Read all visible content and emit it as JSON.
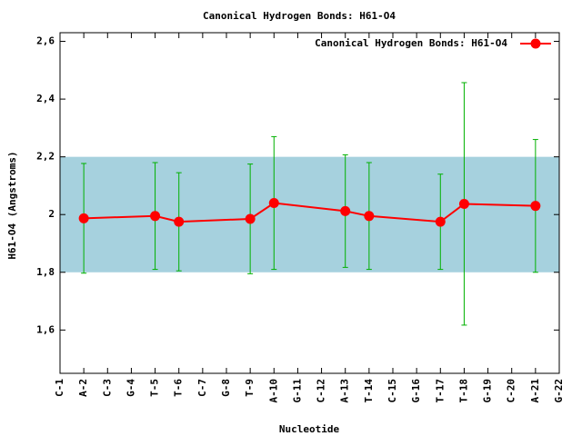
{
  "chart_data": {
    "type": "errorline",
    "title": "Canonical Hydrogen Bonds: H61-O4",
    "xlabel": "Nucleotide",
    "ylabel": "H61-O4 (Angstroms)",
    "categories": [
      "C-1",
      "A-2",
      "C-3",
      "G-4",
      "T-5",
      "T-6",
      "C-7",
      "G-8",
      "T-9",
      "A-10",
      "G-11",
      "C-12",
      "A-13",
      "T-14",
      "C-15",
      "G-16",
      "T-17",
      "T-18",
      "G-19",
      "C-20",
      "A-21",
      "G-22"
    ],
    "ylim": [
      1.45,
      2.63
    ],
    "yticks": [
      {
        "value": 1.6,
        "label": "1,6"
      },
      {
        "value": 1.8,
        "label": "1,8"
      },
      2,
      {
        "value": 2.2,
        "label": "2,2"
      },
      {
        "value": 2.4,
        "label": "2,4"
      },
      {
        "value": 2.6,
        "label": "2,6"
      }
    ],
    "band": [
      1.8,
      2.2
    ],
    "band_color": "#a6d1de",
    "error_color": "#00b000",
    "legend": "top-right",
    "series": [
      {
        "name": "Canonical Hydrogen Bonds: H61-O4",
        "color": "#ff0000",
        "x": [
          "A-2",
          "T-5",
          "T-6",
          "T-9",
          "A-10",
          "A-13",
          "T-14",
          "T-17",
          "T-18",
          "A-21"
        ],
        "values": [
          1.987,
          1.995,
          1.975,
          1.985,
          2.04,
          2.012,
          1.995,
          1.975,
          2.037,
          2.03
        ],
        "errors": [
          0.19,
          0.185,
          0.17,
          0.19,
          0.23,
          0.195,
          0.185,
          0.165,
          0.42,
          0.23
        ]
      }
    ]
  }
}
